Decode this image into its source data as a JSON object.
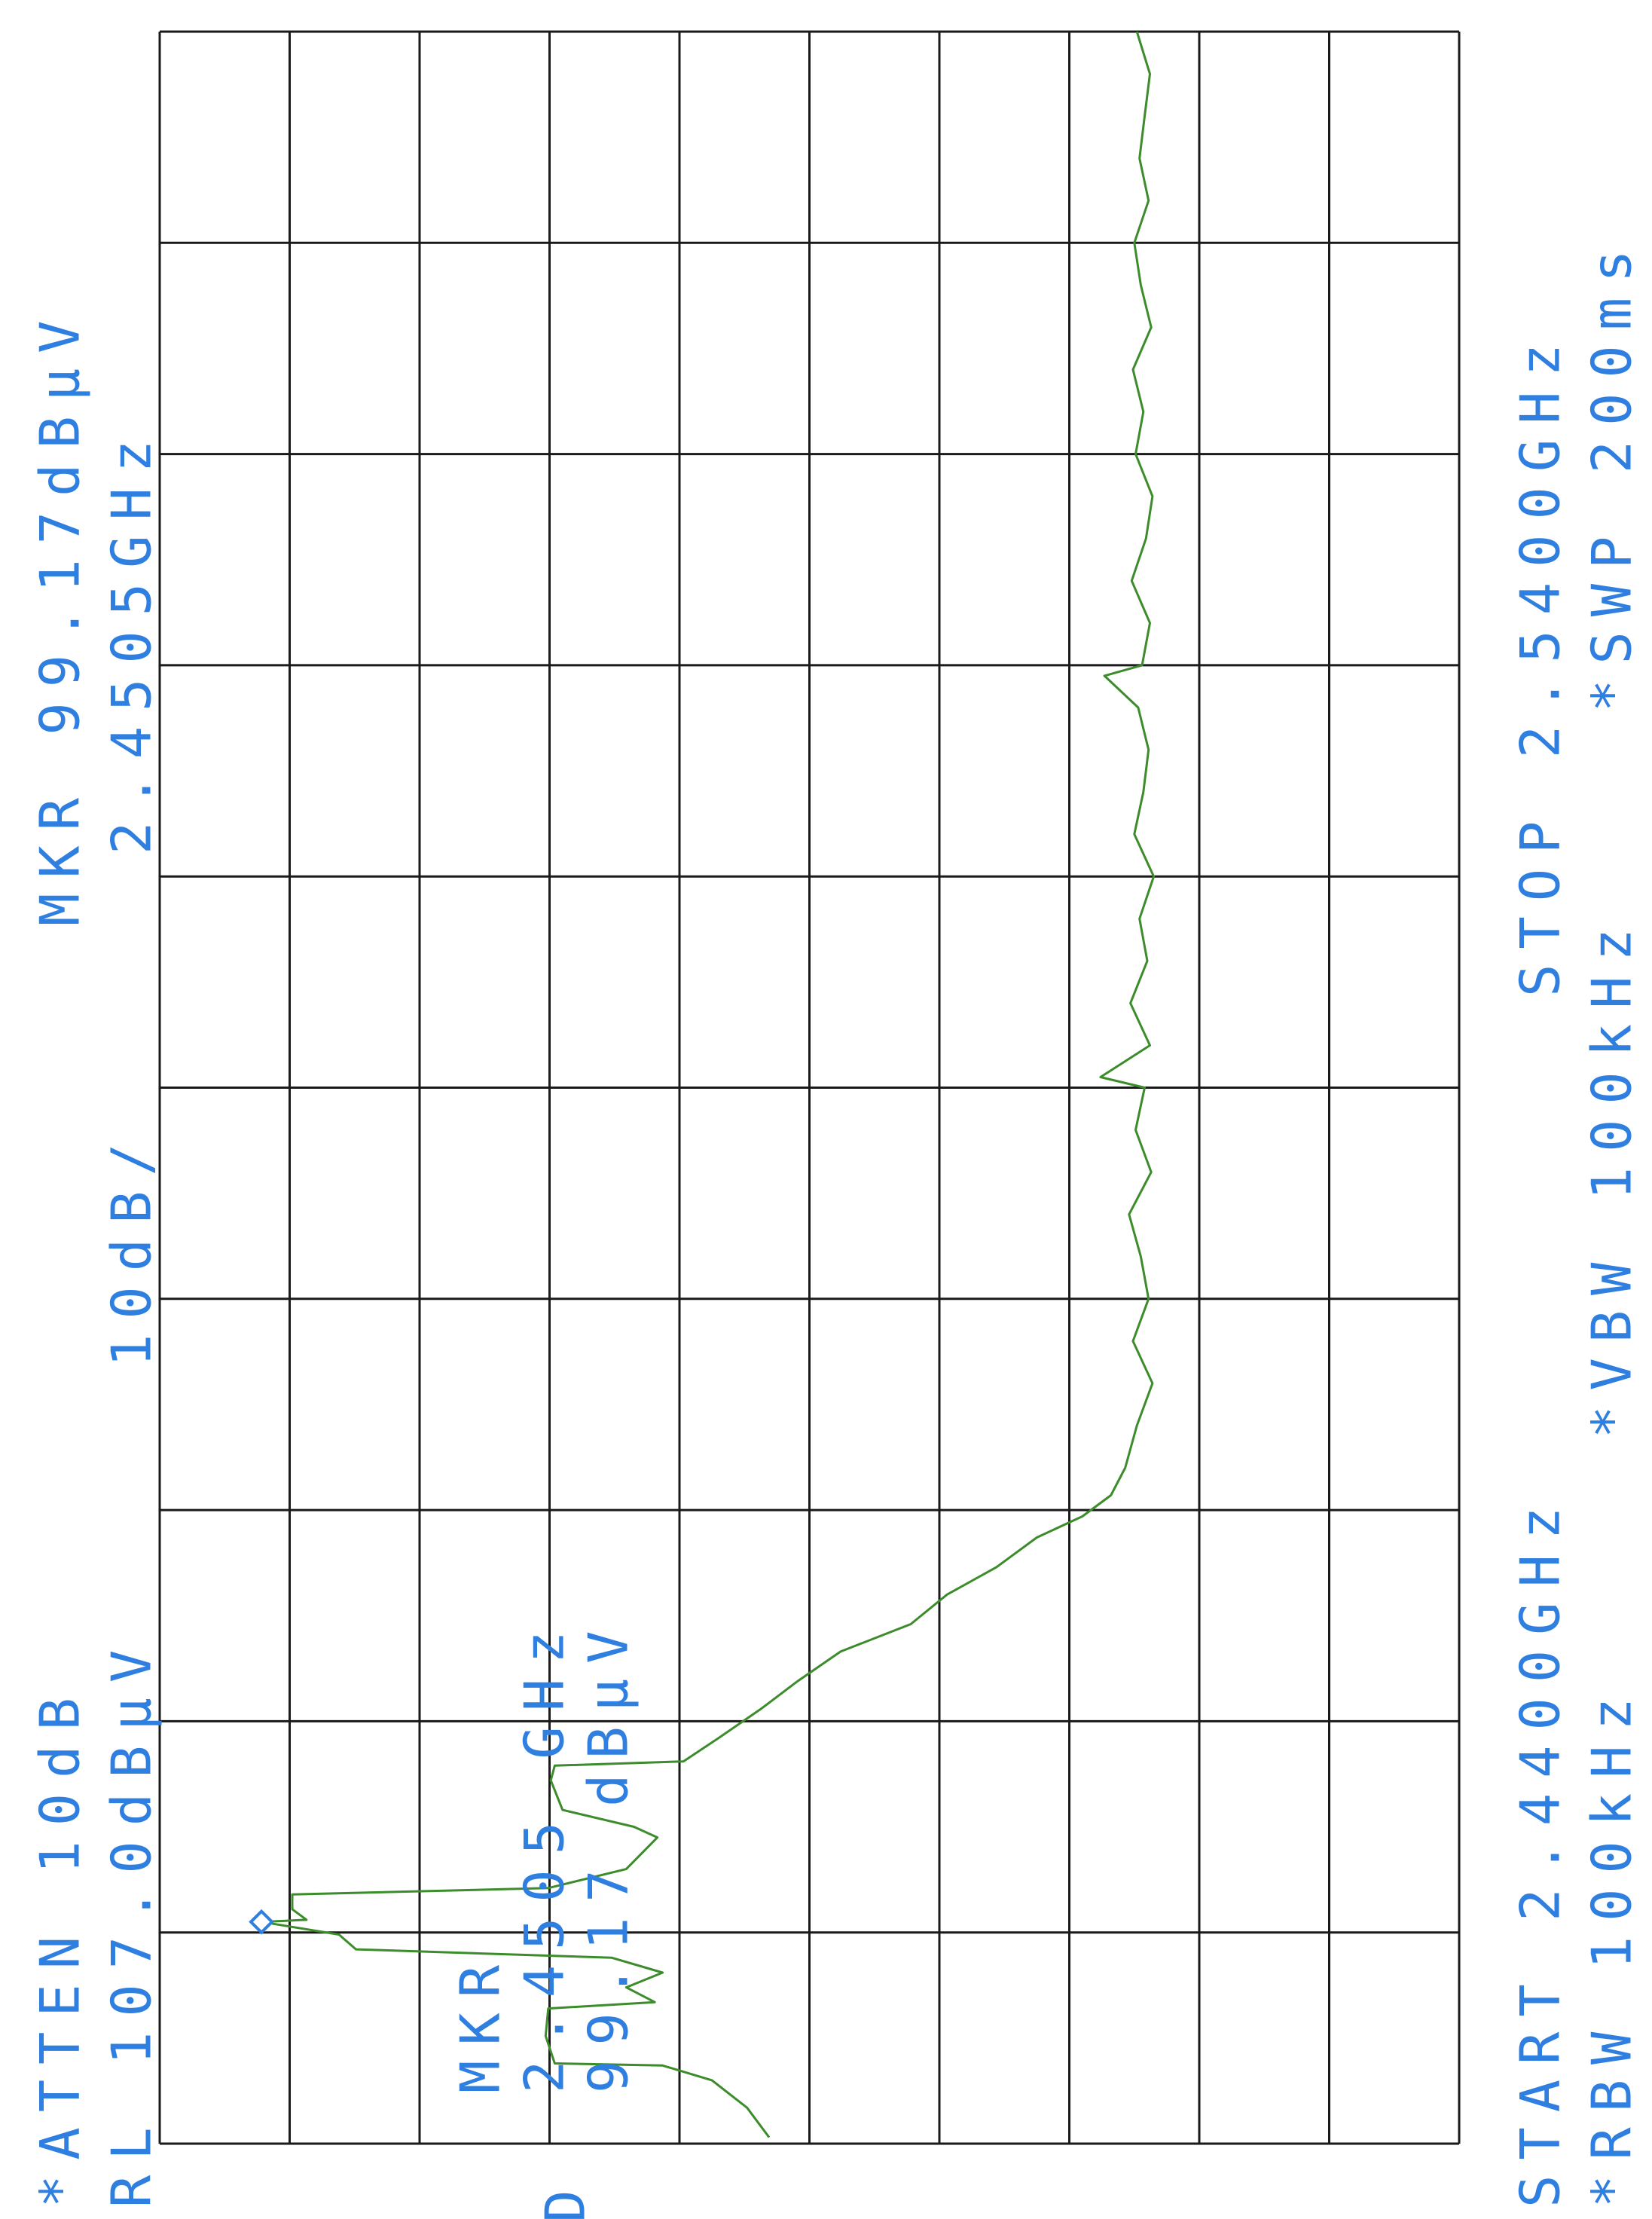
{
  "chart_data": {
    "type": "line",
    "annotations": [
      "*ATTEN 10dB",
      "MKR 99.17dBµV",
      "RL 107.0dBµV",
      "10dB/",
      "2.4505GHz",
      "START 2.4400GHz",
      "STOP 2.5400GHz",
      "*RBW 100kHz",
      "*VBW 100kHz",
      "*SWP 200ms",
      "MKR",
      "2.4505 GHz",
      "99.17 dBµV",
      "D"
    ],
    "xlim": [
      2.44,
      2.54
    ],
    "ylim": [
      7,
      107
    ],
    "grid": true,
    "x": [
      2.4403,
      2.4417,
      2.443,
      2.4437,
      2.4438,
      2.4451,
      2.4464,
      2.4467,
      2.4474,
      2.4481,
      2.4488,
      2.4492,
      2.4499,
      2.4505,
      2.4506,
      2.4511,
      2.4518,
      2.4521,
      2.453,
      2.4545,
      2.455,
      2.4558,
      2.4572,
      2.4579,
      2.4581,
      2.4592,
      2.4606,
      2.4619,
      2.4633,
      2.4646,
      2.466,
      2.4673,
      2.4687,
      2.4697,
      2.4707,
      2.472,
      2.474,
      2.476,
      2.478,
      2.48,
      2.482,
      2.484,
      2.486,
      2.488,
      2.49,
      2.4905,
      2.492,
      2.494,
      2.496,
      2.498,
      2.5,
      2.502,
      2.504,
      2.506,
      2.508,
      2.5095,
      2.51,
      2.512,
      2.514,
      2.516,
      2.518,
      2.52,
      2.522,
      2.524,
      2.526,
      2.528,
      2.53,
      2.532,
      2.534,
      2.536,
      2.538,
      2.54
    ],
    "series": [
      {
        "color": "#3c8c2c",
        "values": [
          60.1,
          61.8,
          64.5,
          68.3,
          76.6,
          77.3,
          77.1,
          68.9,
          71.1,
          68.3,
          72.2,
          91.9,
          93.2,
          99.17,
          95.7,
          96.8,
          96.8,
          77.1,
          71.1,
          68.7,
          70.5,
          76.0,
          76.9,
          76.6,
          66.7,
          64.0,
          60.7,
          57.9,
          54.6,
          49.2,
          46.4,
          42.6,
          39.5,
          36.0,
          33.8,
          32.7,
          31.8,
          30.6,
          32.1,
          30.9,
          31.5,
          32.4,
          30.7,
          31.9,
          31.2,
          34.6,
          30.8,
          32.3,
          31.0,
          31.6,
          30.5,
          32.0,
          31.3,
          30.9,
          31.7,
          34.3,
          31.4,
          30.8,
          32.2,
          31.1,
          30.6,
          31.9,
          31.3,
          32.1,
          30.7,
          31.5,
          32.0,
          30.9,
          31.6,
          31.2,
          30.8,
          31.8
        ]
      }
    ],
    "marker": {
      "x": 2.4505,
      "y": 99.17
    },
    "text_color": "#2f7fe0"
  }
}
